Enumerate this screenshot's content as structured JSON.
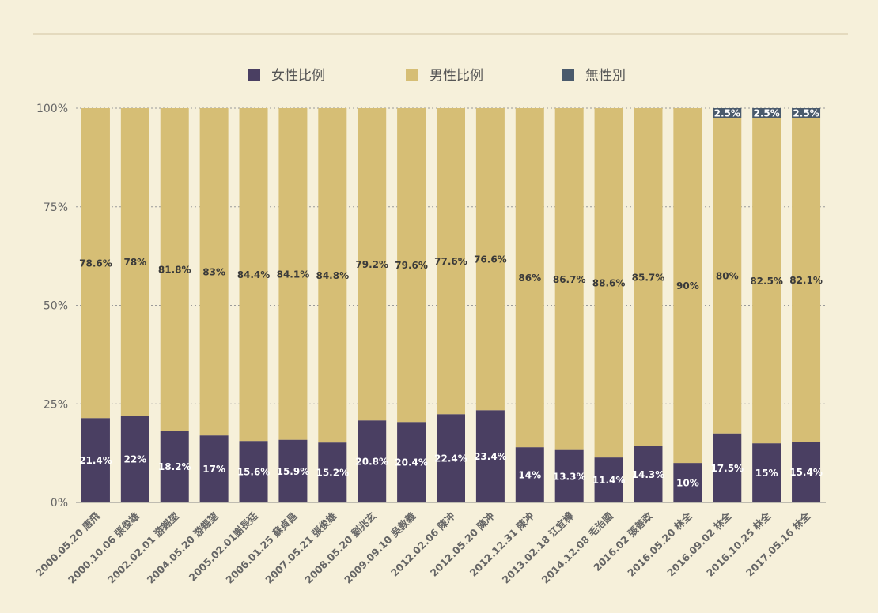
{
  "chart_data": {
    "type": "bar",
    "stacked": true,
    "percent_stacked": true,
    "categories": [
      "2000.05.20 唐飛",
      "2000.10.06 張俊雄",
      "2002.02.01 游錫堃",
      "2004.05.20 游錫堃",
      "2005.02.01謝長廷",
      "2006.01.25 蘇貞昌",
      "2007.05.21 張俊雄",
      "2008.05.20 劉兆玄",
      "2009.09.10 吳敦義",
      "2012.02.06 陳冲",
      "2012.05.20 陳冲",
      "2012.12.31 陳冲",
      "2013.02.18 江宜樺",
      "2014.12.08 毛治國",
      "2016.02 張善政",
      "2016.05.20 林全",
      "2016.09.02 林全",
      "2016.10.25 林全",
      "2017.05.16 林全"
    ],
    "series": [
      {
        "name": "女性比例",
        "color": "#4a3f62",
        "values": [
          21.4,
          22,
          18.2,
          17,
          15.6,
          15.9,
          15.2,
          20.8,
          20.4,
          22.4,
          23.4,
          14,
          13.3,
          11.4,
          14.3,
          10,
          17.5,
          15,
          15.4
        ],
        "labels": [
          "21.4%",
          "22%",
          "18.2%",
          "17%",
          "15.6%",
          "15.9%",
          "15.2%",
          "20.8%",
          "20.4%",
          "22.4%",
          "23.4%",
          "14%",
          "13.3%",
          "11.4%",
          "14.3%",
          "10%",
          "17.5%",
          "15%",
          "15.4%"
        ]
      },
      {
        "name": "男性比例",
        "color": "#d6be75",
        "values": [
          78.6,
          78,
          81.8,
          83,
          84.4,
          84.1,
          84.8,
          79.2,
          79.6,
          77.6,
          76.6,
          86,
          86.7,
          88.6,
          85.7,
          90,
          80,
          82.5,
          82.1
        ],
        "labels": [
          "78.6%",
          "78%",
          "81.8%",
          "83%",
          "84.4%",
          "84.1%",
          "84.8%",
          "79.2%",
          "79.6%",
          "77.6%",
          "76.6%",
          "86%",
          "86.7%",
          "88.6%",
          "85.7%",
          "90%",
          "80%",
          "82.5%",
          "82.1%"
        ]
      },
      {
        "name": "無性別",
        "color": "#4a5a6c",
        "values": [
          0,
          0,
          0,
          0,
          0,
          0,
          0,
          0,
          0,
          0,
          0,
          0,
          0,
          0,
          0,
          0,
          2.5,
          2.5,
          2.5
        ],
        "labels": [
          "",
          "",
          "",
          "",
          "",
          "",
          "",
          "",
          "",
          "",
          "",
          "",
          "",
          "",
          "",
          "",
          "2.5%",
          "2.5%",
          "2.5%"
        ]
      }
    ],
    "yticks": [
      "0%",
      "25%",
      "50%",
      "75%",
      "100%"
    ],
    "ylim": [
      0,
      100
    ],
    "grid": true,
    "legend": "top-center"
  }
}
